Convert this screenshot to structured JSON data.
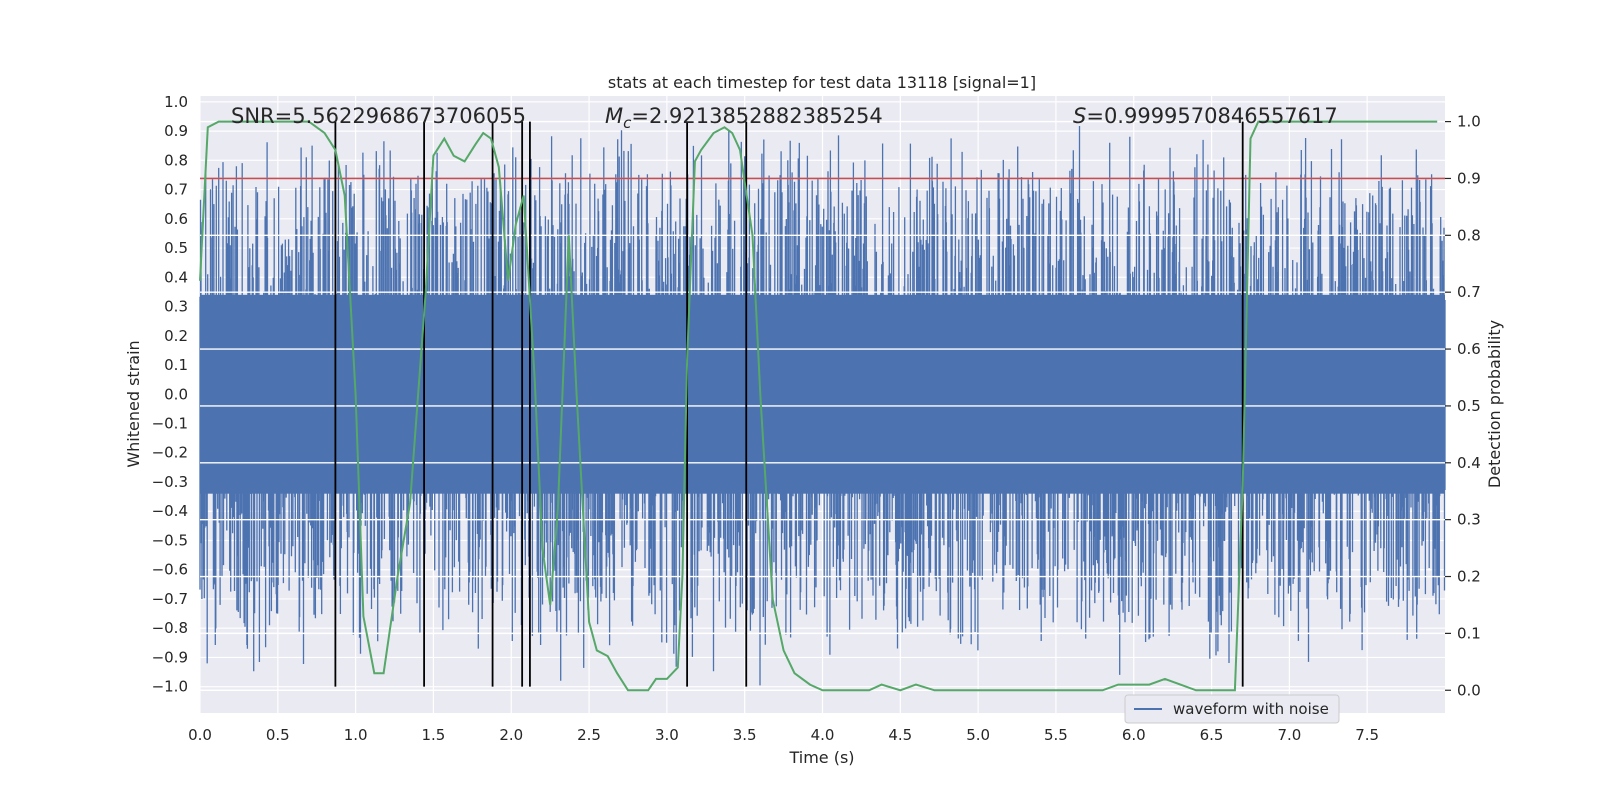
{
  "chart_data": {
    "type": "line",
    "title": "stats at each timestep for test data 13118 [signal=1]",
    "xlabel": "Time (s)",
    "ylabel_left": "Whitened strain",
    "ylabel_right": "Detection probability",
    "xlim": [
      0.0,
      8.0
    ],
    "ylim_left": [
      -1.09,
      1.02
    ],
    "ylim_right": [
      -0.04,
      1.045
    ],
    "x_ticks": [
      0.0,
      0.5,
      1.0,
      1.5,
      2.0,
      2.5,
      3.0,
      3.5,
      4.0,
      4.5,
      5.0,
      5.5,
      6.0,
      6.5,
      7.0,
      7.5
    ],
    "x_tick_labels": [
      "0.0",
      "0.5",
      "1.0",
      "1.5",
      "2.0",
      "2.5",
      "3.0",
      "3.5",
      "4.0",
      "4.5",
      "5.0",
      "5.5",
      "6.0",
      "6.5",
      "7.0",
      "7.5"
    ],
    "y_left_ticks": [
      -1.0,
      -0.9,
      -0.8,
      -0.7,
      -0.6,
      -0.5,
      -0.4,
      -0.3,
      -0.2,
      -0.1,
      0.0,
      0.1,
      0.2,
      0.3,
      0.4,
      0.5,
      0.6,
      0.7,
      0.8,
      0.9,
      1.0
    ],
    "y_left_tick_labels": [
      "−1.0",
      "−0.9",
      "−0.8",
      "−0.7",
      "−0.6",
      "−0.5",
      "−0.4",
      "−0.3",
      "−0.2",
      "−0.1",
      "0.0",
      "0.1",
      "0.2",
      "0.3",
      "0.4",
      "0.5",
      "0.6",
      "0.7",
      "0.8",
      "0.9",
      "1.0"
    ],
    "y_right_ticks": [
      0.0,
      0.1,
      0.2,
      0.3,
      0.4,
      0.5,
      0.6,
      0.7,
      0.8,
      0.9,
      1.0
    ],
    "y_right_tick_labels": [
      "0.0",
      "0.1",
      "0.2",
      "0.3",
      "0.4",
      "0.5",
      "0.6",
      "0.7",
      "0.8",
      "0.9",
      "1.0"
    ],
    "annotations": {
      "snr": "SNR=5.5622968673706055",
      "mc_symbol": "M",
      "mc_subscript": "c",
      "mc_value": "=2.9213852882385254",
      "s_symbol": "S",
      "s_value": "=0.9999570846557617"
    },
    "threshold": {
      "value_right_axis": 0.9,
      "color": "#c44e52"
    },
    "vertical_markers_s": [
      0.87,
      1.44,
      1.88,
      2.07,
      2.12,
      3.13,
      3.51,
      6.7
    ],
    "waveform": {
      "name": "waveform with noise",
      "color": "#4c72b0",
      "duration_s": 8.0,
      "core_amplitude": 0.34,
      "spike_range": [
        -1.0,
        0.93
      ],
      "note": "dense whitened noise trace; peak excursions reach ~0.92 and ~-1.0"
    },
    "probability_series": {
      "color": "#55a868",
      "x": [
        0.0,
        0.05,
        0.12,
        0.2,
        0.3,
        0.5,
        0.7,
        0.8,
        0.87,
        0.93,
        1.0,
        1.05,
        1.12,
        1.18,
        1.27,
        1.35,
        1.45,
        1.5,
        1.57,
        1.63,
        1.7,
        1.77,
        1.82,
        1.87,
        1.92,
        1.98,
        2.03,
        2.08,
        2.15,
        2.2,
        2.25,
        2.3,
        2.37,
        2.42,
        2.5,
        2.55,
        2.62,
        2.68,
        2.75,
        2.82,
        2.88,
        2.93,
        3.0,
        3.07,
        3.1,
        3.13,
        3.18,
        3.22,
        3.3,
        3.37,
        3.42,
        3.47,
        3.55,
        3.6,
        3.68,
        3.75,
        3.82,
        3.92,
        4.0,
        4.1,
        4.2,
        4.3,
        4.38,
        4.5,
        4.6,
        4.72,
        4.85,
        5.0,
        5.1,
        5.2,
        5.4,
        5.6,
        5.8,
        5.9,
        6.0,
        6.1,
        6.2,
        6.3,
        6.4,
        6.5,
        6.6,
        6.65,
        6.7,
        6.75,
        6.8,
        6.9,
        7.0,
        7.2,
        7.5,
        7.8,
        7.95
      ],
      "y": [
        0.72,
        0.99,
        1.0,
        1.0,
        1.0,
        1.0,
        1.0,
        0.98,
        0.95,
        0.87,
        0.52,
        0.13,
        0.03,
        0.03,
        0.2,
        0.33,
        0.7,
        0.94,
        0.97,
        0.94,
        0.93,
        0.96,
        0.98,
        0.97,
        0.92,
        0.72,
        0.82,
        0.87,
        0.55,
        0.25,
        0.15,
        0.32,
        0.8,
        0.52,
        0.12,
        0.07,
        0.06,
        0.03,
        0.0,
        0.0,
        0.0,
        0.02,
        0.02,
        0.04,
        0.2,
        0.58,
        0.93,
        0.95,
        0.98,
        0.99,
        0.98,
        0.95,
        0.8,
        0.52,
        0.16,
        0.07,
        0.03,
        0.01,
        0.0,
        0.0,
        0.0,
        0.0,
        0.01,
        0.0,
        0.01,
        0.0,
        0.0,
        0.0,
        0.0,
        0.0,
        0.0,
        0.0,
        0.0,
        0.01,
        0.01,
        0.01,
        0.02,
        0.01,
        0.0,
        0.0,
        0.0,
        0.0,
        0.36,
        0.97,
        1.0,
        1.0,
        1.0,
        1.0,
        1.0,
        1.0,
        1.0
      ]
    },
    "legend": {
      "entries": [
        "waveform with noise"
      ],
      "placement": "lower-right"
    },
    "grid": true
  }
}
